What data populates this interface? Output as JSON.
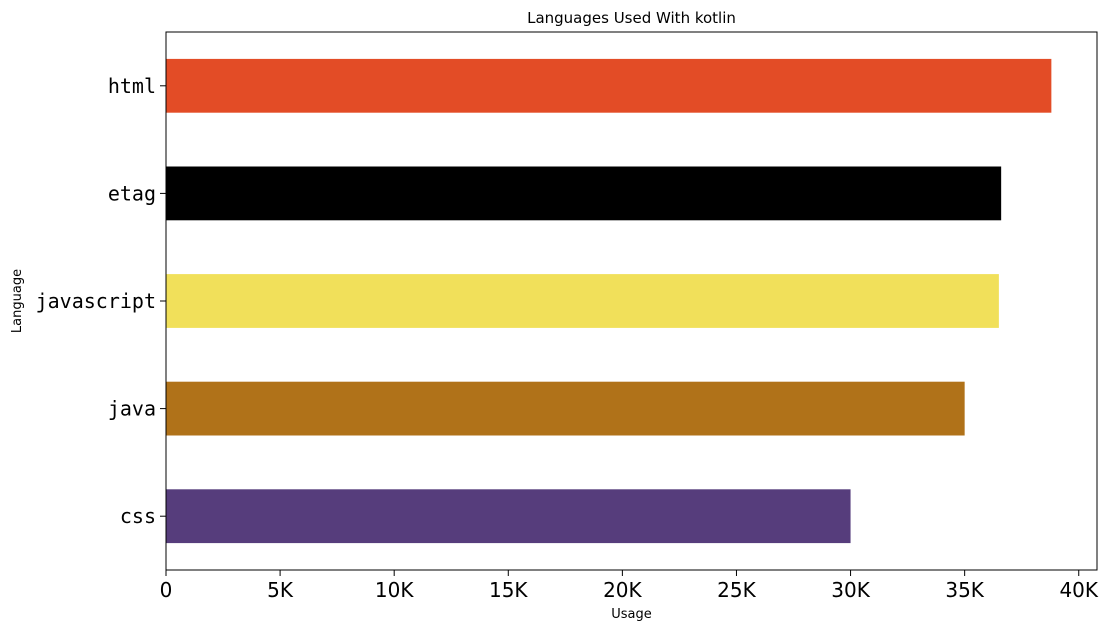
{
  "chart_data": {
    "type": "bar",
    "orientation": "horizontal",
    "title": "Languages Used With kotlin",
    "xlabel": "Usage",
    "ylabel": "Language",
    "categories": [
      "html",
      "etag",
      "javascript",
      "java",
      "css"
    ],
    "values": [
      38800,
      36600,
      36500,
      35000,
      30000
    ],
    "colors": [
      "#e34c26",
      "#000000",
      "#f1e05a",
      "#b07219",
      "#563d7c"
    ],
    "xlim": [
      0,
      40800
    ],
    "xticks": [
      0,
      5000,
      10000,
      15000,
      20000,
      25000,
      30000,
      35000,
      40000
    ],
    "xtick_labels": [
      "0",
      "5K",
      "10K",
      "15K",
      "20K",
      "25K",
      "30K",
      "35K",
      "40K"
    ],
    "grid": false,
    "legend": "none"
  }
}
